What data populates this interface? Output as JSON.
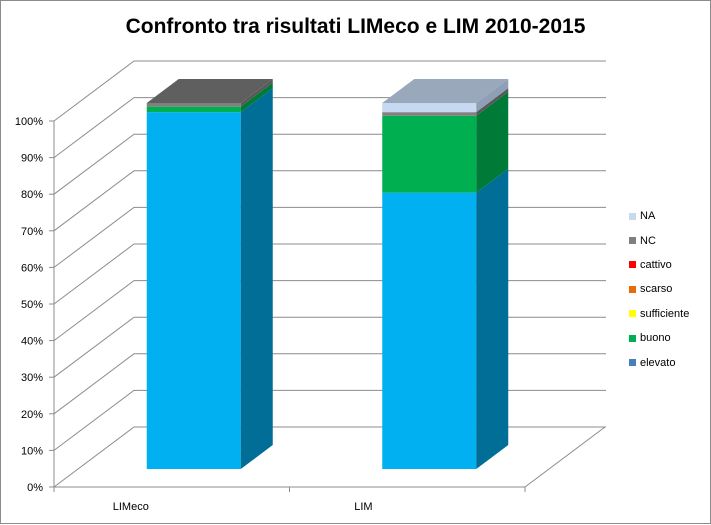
{
  "chart_data": {
    "type": "bar",
    "subtype": "3d-stacked-100-percent",
    "title": "Confronto tra risultati LIMeco e LIM 2010-2015",
    "xlabel": "",
    "ylabel": "",
    "categories": [
      "LIMeco",
      "LIM"
    ],
    "series": [
      {
        "name": "elevato",
        "values": [
          97.5,
          75.5
        ],
        "color": "#00B0F0",
        "side_color": "#006E96",
        "legend_color": "#4A7EBB"
      },
      {
        "name": "buono",
        "values": [
          1.5,
          21.0
        ],
        "color": "#00B050",
        "side_color": "#007A37",
        "legend_color": "#00B050"
      },
      {
        "name": "sufficiente",
        "values": [
          0,
          0
        ],
        "color": "#FFFF00",
        "side_color": "#BFBF00",
        "legend_color": "#FFFF00"
      },
      {
        "name": "scarso",
        "values": [
          0,
          0
        ],
        "color": "#E46C0A",
        "side_color": "#A84F07",
        "legend_color": "#E46C0A"
      },
      {
        "name": "cattivo",
        "values": [
          0,
          0
        ],
        "color": "#FF0000",
        "side_color": "#B30000",
        "legend_color": "#FF0000"
      },
      {
        "name": "NC",
        "values": [
          1.0,
          1.0
        ],
        "color": "#808080",
        "side_color": "#595959",
        "top_color": "#5F5F5F",
        "legend_color": "#808080"
      },
      {
        "name": "NA",
        "values": [
          0,
          2.5
        ],
        "color": "#C6D9F1",
        "side_color": "#8E9FB6",
        "top_color": "#9AA8BC",
        "legend_color": "#C6D9F1"
      }
    ],
    "y_ticks": [
      "0%",
      "10%",
      "20%",
      "30%",
      "40%",
      "50%",
      "60%",
      "70%",
      "80%",
      "90%",
      "100%"
    ],
    "ylim": [
      0,
      100
    ],
    "grid": true,
    "legend_position": "right",
    "legend_order": [
      "NA",
      "NC",
      "cattivo",
      "scarso",
      "sufficiente",
      "buono",
      "elevato"
    ]
  }
}
